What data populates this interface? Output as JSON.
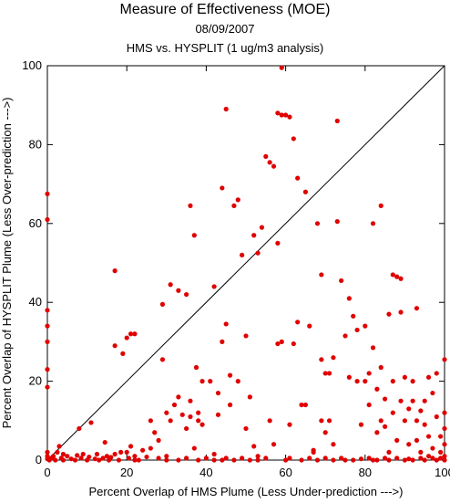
{
  "chart_data": {
    "type": "scatter",
    "title": "Measure of Effectiveness (MOE)",
    "subtitle_date": "08/09/2007",
    "subtitle_analysis": "HMS vs. HYSPLIT  (1 ug/m3 analysis)",
    "xlabel": "Percent Overlap of HMS Plume (Less Under-prediction --->)",
    "ylabel": "Percent Overlap of HYSPLIT Plume (Less Over-prediction --->)",
    "xlim": [
      0,
      100
    ],
    "ylim": [
      0,
      100
    ],
    "xticks": [
      0,
      20,
      40,
      60,
      80,
      100
    ],
    "yticks": [
      0,
      20,
      40,
      60,
      80,
      100
    ],
    "reference_line": "y = x",
    "point_color": "#e00000",
    "grid": false,
    "points": [
      [
        0,
        67.5
      ],
      [
        0,
        61
      ],
      [
        0,
        38
      ],
      [
        0,
        34
      ],
      [
        0,
        30
      ],
      [
        0,
        23
      ],
      [
        0,
        18.5
      ],
      [
        0,
        2
      ],
      [
        0,
        1
      ],
      [
        0,
        0.3
      ],
      [
        0.5,
        0
      ],
      [
        1,
        0.5
      ],
      [
        1.5,
        1
      ],
      [
        2,
        0
      ],
      [
        2.5,
        2
      ],
      [
        3,
        3.5
      ],
      [
        3.5,
        0.5
      ],
      [
        4,
        0
      ],
      [
        4,
        1.5
      ],
      [
        5,
        1
      ],
      [
        6,
        0.3
      ],
      [
        7,
        0
      ],
      [
        7.5,
        1.2
      ],
      [
        8,
        8
      ],
      [
        8.5,
        0.5
      ],
      [
        9,
        1.5
      ],
      [
        10,
        0
      ],
      [
        10.5,
        0.8
      ],
      [
        11,
        9.5
      ],
      [
        12,
        0.3
      ],
      [
        12.5,
        1.5
      ],
      [
        13,
        0
      ],
      [
        14,
        0.5
      ],
      [
        14.5,
        4.5
      ],
      [
        15,
        1
      ],
      [
        15.5,
        0
      ],
      [
        16,
        0.7
      ],
      [
        17,
        1.5
      ],
      [
        17,
        29
      ],
      [
        17,
        48
      ],
      [
        18,
        0
      ],
      [
        18.5,
        2
      ],
      [
        19,
        27
      ],
      [
        20,
        2
      ],
      [
        20,
        31
      ],
      [
        20.5,
        0.5
      ],
      [
        21,
        3.5
      ],
      [
        21,
        32
      ],
      [
        22,
        0
      ],
      [
        22,
        1
      ],
      [
        22,
        32
      ],
      [
        23,
        0
      ],
      [
        24,
        2.5
      ],
      [
        25,
        0.8
      ],
      [
        26,
        10
      ],
      [
        26,
        3
      ],
      [
        27,
        7
      ],
      [
        28,
        5
      ],
      [
        28,
        0.5
      ],
      [
        29,
        25.5
      ],
      [
        29,
        39.5
      ],
      [
        30,
        0
      ],
      [
        30,
        1
      ],
      [
        30,
        12
      ],
      [
        31,
        10
      ],
      [
        31,
        44.5
      ],
      [
        32,
        14
      ],
      [
        33,
        0
      ],
      [
        33,
        16
      ],
      [
        33,
        43
      ],
      [
        34,
        11.5
      ],
      [
        35,
        0.5
      ],
      [
        35,
        42
      ],
      [
        35,
        8
      ],
      [
        36,
        15
      ],
      [
        36,
        64.5
      ],
      [
        36,
        11
      ],
      [
        37,
        3
      ],
      [
        37,
        57
      ],
      [
        37.5,
        23.5
      ],
      [
        38,
        0
      ],
      [
        38,
        12
      ],
      [
        38,
        10
      ],
      [
        39,
        20
      ],
      [
        39,
        9
      ],
      [
        40,
        0.5
      ],
      [
        41,
        20
      ],
      [
        42,
        1.5
      ],
      [
        42,
        0
      ],
      [
        42,
        44
      ],
      [
        43,
        17
      ],
      [
        43,
        11.5
      ],
      [
        44,
        0
      ],
      [
        44,
        69
      ],
      [
        44,
        30
      ],
      [
        45,
        0.5
      ],
      [
        45,
        89
      ],
      [
        45,
        34.5
      ],
      [
        46,
        14
      ],
      [
        46,
        21.5
      ],
      [
        47,
        0
      ],
      [
        47,
        64.5
      ],
      [
        48,
        66
      ],
      [
        48,
        20
      ],
      [
        49,
        0.5
      ],
      [
        49,
        52
      ],
      [
        50,
        31.5
      ],
      [
        50,
        8
      ],
      [
        51,
        16
      ],
      [
        51,
        0
      ],
      [
        52,
        57
      ],
      [
        52,
        3.5
      ],
      [
        53,
        1
      ],
      [
        53,
        0
      ],
      [
        53,
        52.5
      ],
      [
        54,
        59
      ],
      [
        55,
        0.5
      ],
      [
        55,
        77
      ],
      [
        56,
        75.5
      ],
      [
        56,
        10
      ],
      [
        57,
        74.5
      ],
      [
        57,
        4
      ],
      [
        58,
        88
      ],
      [
        58,
        55
      ],
      [
        58,
        29.5
      ],
      [
        59,
        87.5
      ],
      [
        59,
        99.5
      ],
      [
        59,
        30
      ],
      [
        60,
        0
      ],
      [
        60,
        87.5
      ],
      [
        61,
        0.5
      ],
      [
        61,
        87
      ],
      [
        61,
        9
      ],
      [
        62,
        81.5
      ],
      [
        62,
        29.5
      ],
      [
        63,
        71.5
      ],
      [
        63,
        35
      ],
      [
        64,
        14
      ],
      [
        64,
        0
      ],
      [
        65,
        68
      ],
      [
        65,
        14
      ],
      [
        66,
        0.5
      ],
      [
        66,
        34
      ],
      [
        67,
        2
      ],
      [
        67,
        2.5
      ],
      [
        68,
        60
      ],
      [
        68,
        0
      ],
      [
        69,
        47
      ],
      [
        69,
        25.5
      ],
      [
        69,
        10
      ],
      [
        70,
        0.5
      ],
      [
        70,
        22
      ],
      [
        70,
        7
      ],
      [
        71,
        22
      ],
      [
        71,
        10
      ],
      [
        72,
        26
      ],
      [
        72,
        0
      ],
      [
        72,
        4
      ],
      [
        73,
        60.5
      ],
      [
        73,
        86
      ],
      [
        74,
        0.5
      ],
      [
        74,
        45.5
      ],
      [
        75,
        0
      ],
      [
        75,
        31.5
      ],
      [
        76,
        41
      ],
      [
        76,
        21
      ],
      [
        77,
        36.5
      ],
      [
        77,
        0
      ],
      [
        78,
        33
      ],
      [
        78,
        20
      ],
      [
        79,
        0.3
      ],
      [
        79,
        9
      ],
      [
        80,
        34
      ],
      [
        80,
        20
      ],
      [
        81,
        0.5
      ],
      [
        81,
        22
      ],
      [
        81,
        14
      ],
      [
        82,
        28.5
      ],
      [
        82,
        60
      ],
      [
        82,
        0
      ],
      [
        83,
        0
      ],
      [
        83,
        18
      ],
      [
        83,
        7
      ],
      [
        84,
        64.5
      ],
      [
        84,
        23.5
      ],
      [
        84,
        10
      ],
      [
        85,
        0.5
      ],
      [
        85,
        15.5
      ],
      [
        85,
        8.5
      ],
      [
        86,
        0
      ],
      [
        86,
        37
      ],
      [
        86,
        2
      ],
      [
        87,
        47
      ],
      [
        87,
        20
      ],
      [
        87,
        12
      ],
      [
        88,
        0.5
      ],
      [
        88,
        46.5
      ],
      [
        88,
        5
      ],
      [
        89,
        46
      ],
      [
        89,
        37.5
      ],
      [
        89,
        15
      ],
      [
        90,
        0
      ],
      [
        90,
        21
      ],
      [
        90,
        10
      ],
      [
        91,
        0.3
      ],
      [
        91,
        13
      ],
      [
        91,
        4
      ],
      [
        92,
        20
      ],
      [
        92,
        15
      ],
      [
        92,
        0
      ],
      [
        93,
        38.5
      ],
      [
        93,
        10
      ],
      [
        93,
        5
      ],
      [
        94,
        0.5
      ],
      [
        94,
        12.5
      ],
      [
        94,
        2
      ],
      [
        95,
        0
      ],
      [
        95,
        15
      ],
      [
        95,
        9
      ],
      [
        96,
        1
      ],
      [
        96,
        21
      ],
      [
        96,
        6
      ],
      [
        97,
        0.5
      ],
      [
        97,
        17
      ],
      [
        97,
        3
      ],
      [
        98,
        0
      ],
      [
        98,
        22
      ],
      [
        98,
        11
      ],
      [
        99,
        0.5
      ],
      [
        99,
        6
      ],
      [
        99,
        2
      ],
      [
        100,
        25.5
      ],
      [
        100,
        12
      ],
      [
        100,
        8
      ],
      [
        100,
        4
      ],
      [
        100,
        1
      ],
      [
        100,
        0
      ]
    ]
  }
}
